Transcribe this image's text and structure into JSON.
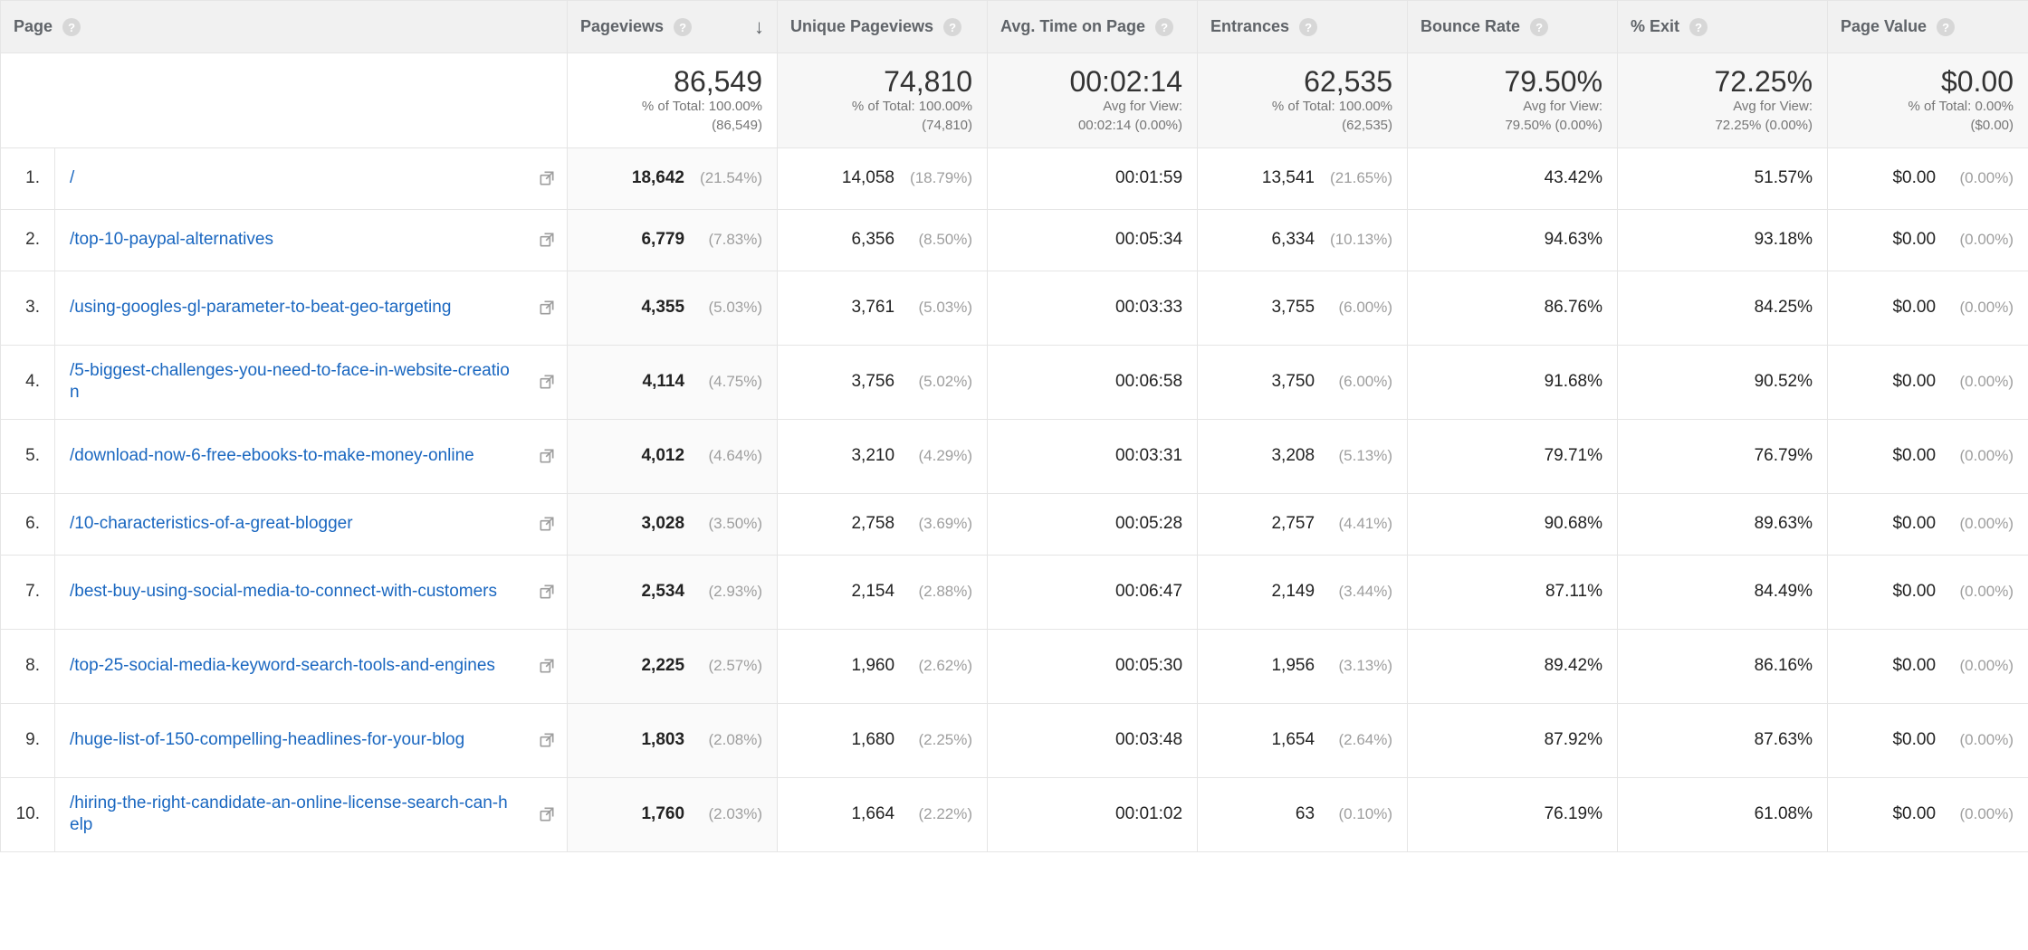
{
  "columns": {
    "page": "Page",
    "pageviews": "Pageviews",
    "unique": "Unique Pageviews",
    "avgTime": "Avg. Time on Page",
    "entrances": "Entrances",
    "bounce": "Bounce Rate",
    "exit": "% Exit",
    "value": "Page Value"
  },
  "summary": {
    "pageviews": {
      "big": "86,549",
      "sub1": "% of Total: 100.00%",
      "sub2": "(86,549)"
    },
    "unique": {
      "big": "74,810",
      "sub1": "% of Total: 100.00%",
      "sub2": "(74,810)"
    },
    "avgTime": {
      "big": "00:02:14",
      "sub1": "Avg for View:",
      "sub2": "00:02:14 (0.00%)"
    },
    "entrances": {
      "big": "62,535",
      "sub1": "% of Total: 100.00%",
      "sub2": "(62,535)"
    },
    "bounce": {
      "big": "79.50%",
      "sub1": "Avg for View:",
      "sub2": "79.50% (0.00%)"
    },
    "exit": {
      "big": "72.25%",
      "sub1": "Avg for View:",
      "sub2": "72.25% (0.00%)"
    },
    "value": {
      "big": "$0.00",
      "sub1": "% of Total: 0.00%",
      "sub2": "($0.00)"
    }
  },
  "rows": [
    {
      "n": "1.",
      "page": "/",
      "pv": "18,642",
      "pvp": "(21.54%)",
      "upv": "14,058",
      "upvp": "(18.79%)",
      "avg": "00:01:59",
      "ent": "13,541",
      "entp": "(21.65%)",
      "br": "43.42%",
      "ex": "51.57%",
      "val": "$0.00",
      "valp": "(0.00%)",
      "tall": false
    },
    {
      "n": "2.",
      "page": "/top-10-paypal-alternatives",
      "pv": "6,779",
      "pvp": "(7.83%)",
      "upv": "6,356",
      "upvp": "(8.50%)",
      "avg": "00:05:34",
      "ent": "6,334",
      "entp": "(10.13%)",
      "br": "94.63%",
      "ex": "93.18%",
      "val": "$0.00",
      "valp": "(0.00%)",
      "tall": false
    },
    {
      "n": "3.",
      "page": "/using-googles-gl-parameter-to-beat-geo-targeting",
      "pv": "4,355",
      "pvp": "(5.03%)",
      "upv": "3,761",
      "upvp": "(5.03%)",
      "avg": "00:03:33",
      "ent": "3,755",
      "entp": "(6.00%)",
      "br": "86.76%",
      "ex": "84.25%",
      "val": "$0.00",
      "valp": "(0.00%)",
      "tall": true
    },
    {
      "n": "4.",
      "page": "/5-biggest-challenges-you-need-to-face-in-website-creation",
      "pv": "4,114",
      "pvp": "(4.75%)",
      "upv": "3,756",
      "upvp": "(5.02%)",
      "avg": "00:06:58",
      "ent": "3,750",
      "entp": "(6.00%)",
      "br": "91.68%",
      "ex": "90.52%",
      "val": "$0.00",
      "valp": "(0.00%)",
      "tall": true
    },
    {
      "n": "5.",
      "page": "/download-now-6-free-ebooks-to-make-money-online",
      "pv": "4,012",
      "pvp": "(4.64%)",
      "upv": "3,210",
      "upvp": "(4.29%)",
      "avg": "00:03:31",
      "ent": "3,208",
      "entp": "(5.13%)",
      "br": "79.71%",
      "ex": "76.79%",
      "val": "$0.00",
      "valp": "(0.00%)",
      "tall": true
    },
    {
      "n": "6.",
      "page": "/10-characteristics-of-a-great-blogger",
      "pv": "3,028",
      "pvp": "(3.50%)",
      "upv": "2,758",
      "upvp": "(3.69%)",
      "avg": "00:05:28",
      "ent": "2,757",
      "entp": "(4.41%)",
      "br": "90.68%",
      "ex": "89.63%",
      "val": "$0.00",
      "valp": "(0.00%)",
      "tall": false
    },
    {
      "n": "7.",
      "page": "/best-buy-using-social-media-to-connect-with-customers",
      "pv": "2,534",
      "pvp": "(2.93%)",
      "upv": "2,154",
      "upvp": "(2.88%)",
      "avg": "00:06:47",
      "ent": "2,149",
      "entp": "(3.44%)",
      "br": "87.11%",
      "ex": "84.49%",
      "val": "$0.00",
      "valp": "(0.00%)",
      "tall": true
    },
    {
      "n": "8.",
      "page": "/top-25-social-media-keyword-search-tools-and-engines",
      "pv": "2,225",
      "pvp": "(2.57%)",
      "upv": "1,960",
      "upvp": "(2.62%)",
      "avg": "00:05:30",
      "ent": "1,956",
      "entp": "(3.13%)",
      "br": "89.42%",
      "ex": "86.16%",
      "val": "$0.00",
      "valp": "(0.00%)",
      "tall": true
    },
    {
      "n": "9.",
      "page": "/huge-list-of-150-compelling-headlines-for-your-blog",
      "pv": "1,803",
      "pvp": "(2.08%)",
      "upv": "1,680",
      "upvp": "(2.25%)",
      "avg": "00:03:48",
      "ent": "1,654",
      "entp": "(2.64%)",
      "br": "87.92%",
      "ex": "87.63%",
      "val": "$0.00",
      "valp": "(0.00%)",
      "tall": true
    },
    {
      "n": "10.",
      "page": "/hiring-the-right-candidate-an-online-license-search-can-help",
      "pv": "1,760",
      "pvp": "(2.03%)",
      "upv": "1,664",
      "upvp": "(2.22%)",
      "avg": "00:01:02",
      "ent": "63",
      "entp": "(0.10%)",
      "br": "76.19%",
      "ex": "61.08%",
      "val": "$0.00",
      "valp": "(0.00%)",
      "tall": true
    }
  ],
  "colors": {
    "link": "#1a67c0",
    "muted": "#9e9e9e",
    "headerBg": "#f1f1f1",
    "border": "#e5e5e5"
  }
}
